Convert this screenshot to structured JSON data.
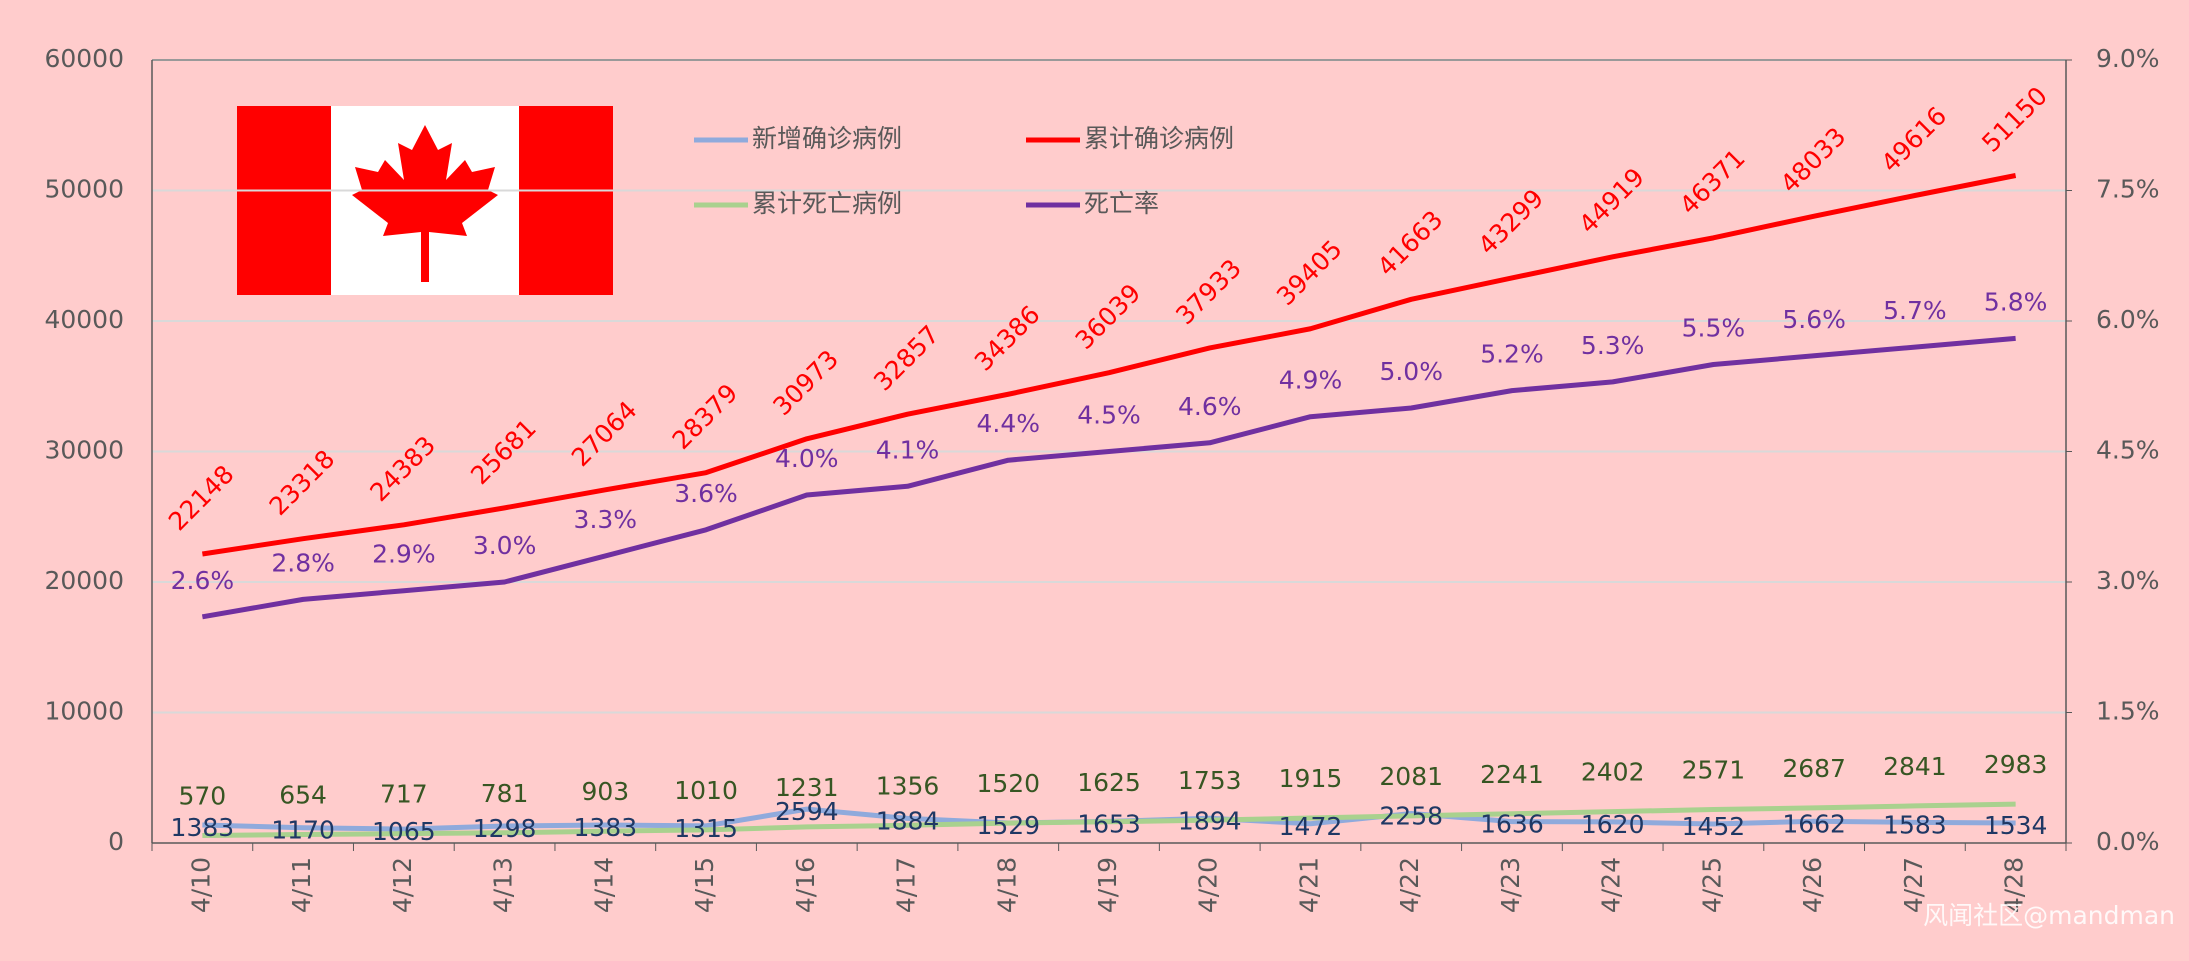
{
  "chart_data": {
    "type": "line",
    "categories": [
      "4/10",
      "4/11",
      "4/12",
      "4/13",
      "4/14",
      "4/15",
      "4/16",
      "4/17",
      "4/18",
      "4/19",
      "4/20",
      "4/21",
      "4/22",
      "4/23",
      "4/24",
      "4/25",
      "4/26",
      "4/27",
      "4/28"
    ],
    "series": [
      {
        "name": "新增确诊病例",
        "color": "#8faadc",
        "values": [
          1383,
          1170,
          1065,
          1298,
          1383,
          1315,
          2594,
          1884,
          1529,
          1653,
          1894,
          1472,
          2258,
          1636,
          1620,
          1452,
          1662,
          1583,
          1534
        ]
      },
      {
        "name": "累计确诊病例",
        "color": "#ff0000",
        "values": [
          22148,
          23318,
          24383,
          25681,
          27064,
          28379,
          30973,
          32857,
          34386,
          36039,
          37933,
          39405,
          41663,
          43299,
          44919,
          46371,
          48033,
          49616,
          51150
        ]
      },
      {
        "name": "累计死亡病例",
        "color": "#a9d18e",
        "values": [
          570,
          654,
          717,
          781,
          903,
          1010,
          1231,
          1356,
          1520,
          1625,
          1753,
          1915,
          2081,
          2241,
          2402,
          2571,
          2687,
          2841,
          2983
        ]
      },
      {
        "name": "死亡率",
        "color": "#7030a0",
        "axis": "y2",
        "values": [
          2.6,
          2.8,
          2.9,
          3.0,
          3.3,
          3.6,
          4.0,
          4.1,
          4.4,
          4.5,
          4.6,
          4.9,
          5.0,
          5.2,
          5.3,
          5.5,
          5.6,
          5.7,
          5.8
        ],
        "value_labels": [
          "2.6%",
          "2.8%",
          "2.9%",
          "3.0%",
          "3.3%",
          "3.6%",
          "4.0%",
          "4.1%",
          "4.4%",
          "4.5%",
          "4.6%",
          "4.9%",
          "5.0%",
          "5.2%",
          "5.3%",
          "5.5%",
          "5.6%",
          "5.7%",
          "5.8%"
        ]
      }
    ],
    "ylim": [
      0,
      60000
    ],
    "yticks": [
      0,
      10000,
      20000,
      30000,
      40000,
      50000,
      60000
    ],
    "y2lim": [
      0,
      9
    ],
    "y2ticks": [
      {
        "value": 0,
        "label": "0.0%"
      },
      {
        "value": 1.5,
        "label": "1.5%"
      },
      {
        "value": 3,
        "label": "3.0%"
      },
      {
        "value": 4.5,
        "label": "4.5%"
      },
      {
        "value": 6,
        "label": "6.0%"
      },
      {
        "value": 7.5,
        "label": "7.5%"
      },
      {
        "value": 9,
        "label": "9.0%"
      }
    ],
    "grid": true,
    "watermark": "风闻社区@mandman"
  }
}
